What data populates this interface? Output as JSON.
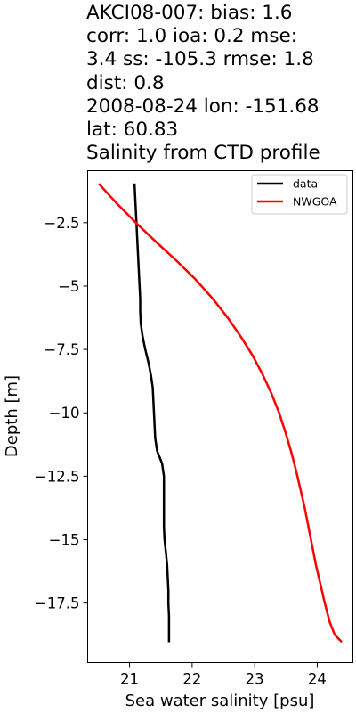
{
  "title_lines": [
    "AKCI08-007: bias: 1.6",
    "corr: 1.0  ioa: 0.2  mse:",
    "3.4  ss: -105.3  rmse: 1.8",
    "dist: 0.8",
    "2008-08-24 lon: -151.68",
    "lat: 60.83",
    "Salinity from CTD profile"
  ],
  "chart_data": {
    "type": "line",
    "title": "AKCI08-007: bias: 1.6 corr: 1.0 ioa: 0.2 mse: 3.4 ss: -105.3 rmse: 1.8 dist: 0.8 2008-08-24 lon: -151.68 lat: 60.83 Salinity from CTD profile",
    "xlabel": "Sea water salinity [psu]",
    "ylabel": "Depth [m]",
    "xlim": [
      20.33,
      24.57
    ],
    "ylim": [
      -19.85,
      -0.45
    ],
    "xticks": [
      21,
      22,
      23,
      24
    ],
    "yticks": [
      -2.5,
      -5.0,
      -7.5,
      -10.0,
      -12.5,
      -15.0,
      -17.5
    ],
    "legend_position": "top-right",
    "grid": false,
    "series": [
      {
        "name": "data",
        "color": "#000000",
        "points": [
          [
            21.08,
            -1.0
          ],
          [
            21.09,
            -1.5
          ],
          [
            21.1,
            -2.0
          ],
          [
            21.11,
            -2.5
          ],
          [
            21.12,
            -3.0
          ],
          [
            21.13,
            -3.5
          ],
          [
            21.14,
            -4.0
          ],
          [
            21.15,
            -4.5
          ],
          [
            21.16,
            -5.0
          ],
          [
            21.17,
            -5.5
          ],
          [
            21.17,
            -6.0
          ],
          [
            21.18,
            -6.5
          ],
          [
            21.21,
            -7.0
          ],
          [
            21.25,
            -7.5
          ],
          [
            21.3,
            -8.0
          ],
          [
            21.34,
            -8.5
          ],
          [
            21.37,
            -9.0
          ],
          [
            21.38,
            -9.5
          ],
          [
            21.39,
            -10.0
          ],
          [
            21.4,
            -10.5
          ],
          [
            21.41,
            -11.0
          ],
          [
            21.44,
            -11.5
          ],
          [
            21.52,
            -12.0
          ],
          [
            21.55,
            -12.5
          ],
          [
            21.55,
            -13.0
          ],
          [
            21.55,
            -13.5
          ],
          [
            21.55,
            -14.0
          ],
          [
            21.55,
            -14.5
          ],
          [
            21.56,
            -15.0
          ],
          [
            21.58,
            -15.5
          ],
          [
            21.6,
            -16.0
          ],
          [
            21.61,
            -16.5
          ],
          [
            21.62,
            -17.0
          ],
          [
            21.62,
            -17.5
          ],
          [
            21.63,
            -18.0
          ],
          [
            21.63,
            -18.5
          ],
          [
            21.63,
            -19.0
          ]
        ]
      },
      {
        "name": "NWGOA",
        "color": "#ff0000",
        "points": [
          [
            20.52,
            -1.0
          ],
          [
            20.8,
            -1.75
          ],
          [
            21.1,
            -2.5
          ],
          [
            21.42,
            -3.25
          ],
          [
            21.75,
            -4.0
          ],
          [
            22.06,
            -4.75
          ],
          [
            22.33,
            -5.5
          ],
          [
            22.57,
            -6.25
          ],
          [
            22.78,
            -7.0
          ],
          [
            22.97,
            -7.75
          ],
          [
            23.13,
            -8.5
          ],
          [
            23.27,
            -9.25
          ],
          [
            23.39,
            -10.0
          ],
          [
            23.49,
            -10.75
          ],
          [
            23.58,
            -11.5
          ],
          [
            23.66,
            -12.25
          ],
          [
            23.73,
            -13.0
          ],
          [
            23.8,
            -13.75
          ],
          [
            23.86,
            -14.5
          ],
          [
            23.92,
            -15.25
          ],
          [
            23.98,
            -16.0
          ],
          [
            24.05,
            -16.75
          ],
          [
            24.12,
            -17.5
          ],
          [
            24.2,
            -18.25
          ],
          [
            24.28,
            -18.75
          ],
          [
            24.38,
            -19.0
          ]
        ]
      }
    ]
  }
}
